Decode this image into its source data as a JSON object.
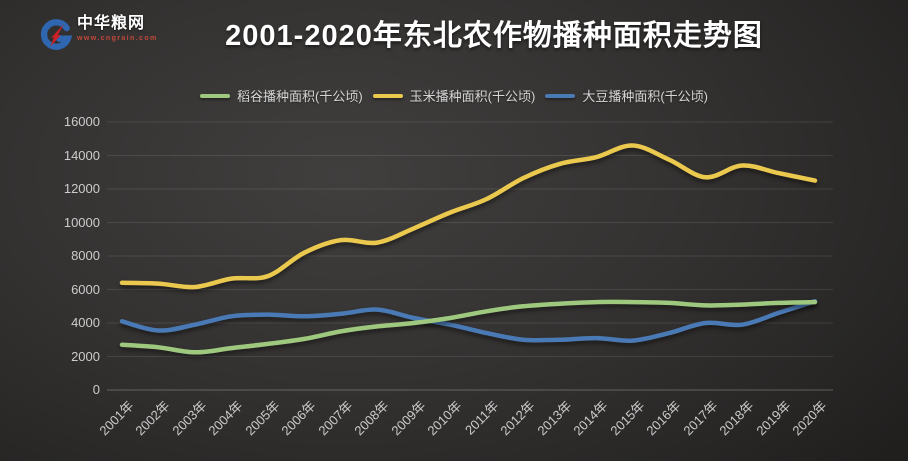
{
  "logo": {
    "name": "中华粮网",
    "url": "www.cngrain.com"
  },
  "page": {
    "title": "2001-2020年东北农作物播种面积走势图"
  },
  "chart_data": {
    "type": "line",
    "title": "2001-2020年东北农作物播种面积走势图",
    "categories": [
      "2001年",
      "2002年",
      "2003年",
      "2004年",
      "2005年",
      "2006年",
      "2007年",
      "2008年",
      "2009年",
      "2010年",
      "2011年",
      "2012年",
      "2013年",
      "2014年",
      "2015年",
      "2016年",
      "2017年",
      "2018年",
      "2019年",
      "2020年"
    ],
    "series": [
      {
        "id": "corn",
        "name": "玉米播种面积(千公顷)",
        "color": "#ebc94e",
        "values": [
          6400,
          6350,
          6150,
          6650,
          6800,
          8200,
          8950,
          8800,
          9650,
          10600,
          11400,
          12650,
          13500,
          13900,
          14600,
          13750,
          12700,
          13400,
          12950,
          12500
        ]
      },
      {
        "id": "soybean",
        "name": "大豆播种面积(千公顷)",
        "color": "#4a7ab5",
        "values": [
          4100,
          3550,
          3900,
          4400,
          4500,
          4400,
          4550,
          4800,
          4300,
          3900,
          3400,
          3000,
          3000,
          3100,
          2950,
          3400,
          4000,
          3900,
          4600,
          5300
        ]
      },
      {
        "id": "rice",
        "name": "稻谷播种面积(千公顷)",
        "color": "#9dc87e",
        "values": [
          2700,
          2550,
          2250,
          2500,
          2750,
          3050,
          3500,
          3800,
          4000,
          4300,
          4700,
          5000,
          5150,
          5250,
          5250,
          5200,
          5050,
          5100,
          5200,
          5250
        ]
      }
    ],
    "legend_order": [
      "rice",
      "corn",
      "soybean"
    ],
    "ylim": [
      0,
      16000
    ],
    "yticks": [
      0,
      2000,
      4000,
      6000,
      8000,
      10000,
      12000,
      14000,
      16000
    ],
    "grid": true,
    "legend_position": "top"
  }
}
